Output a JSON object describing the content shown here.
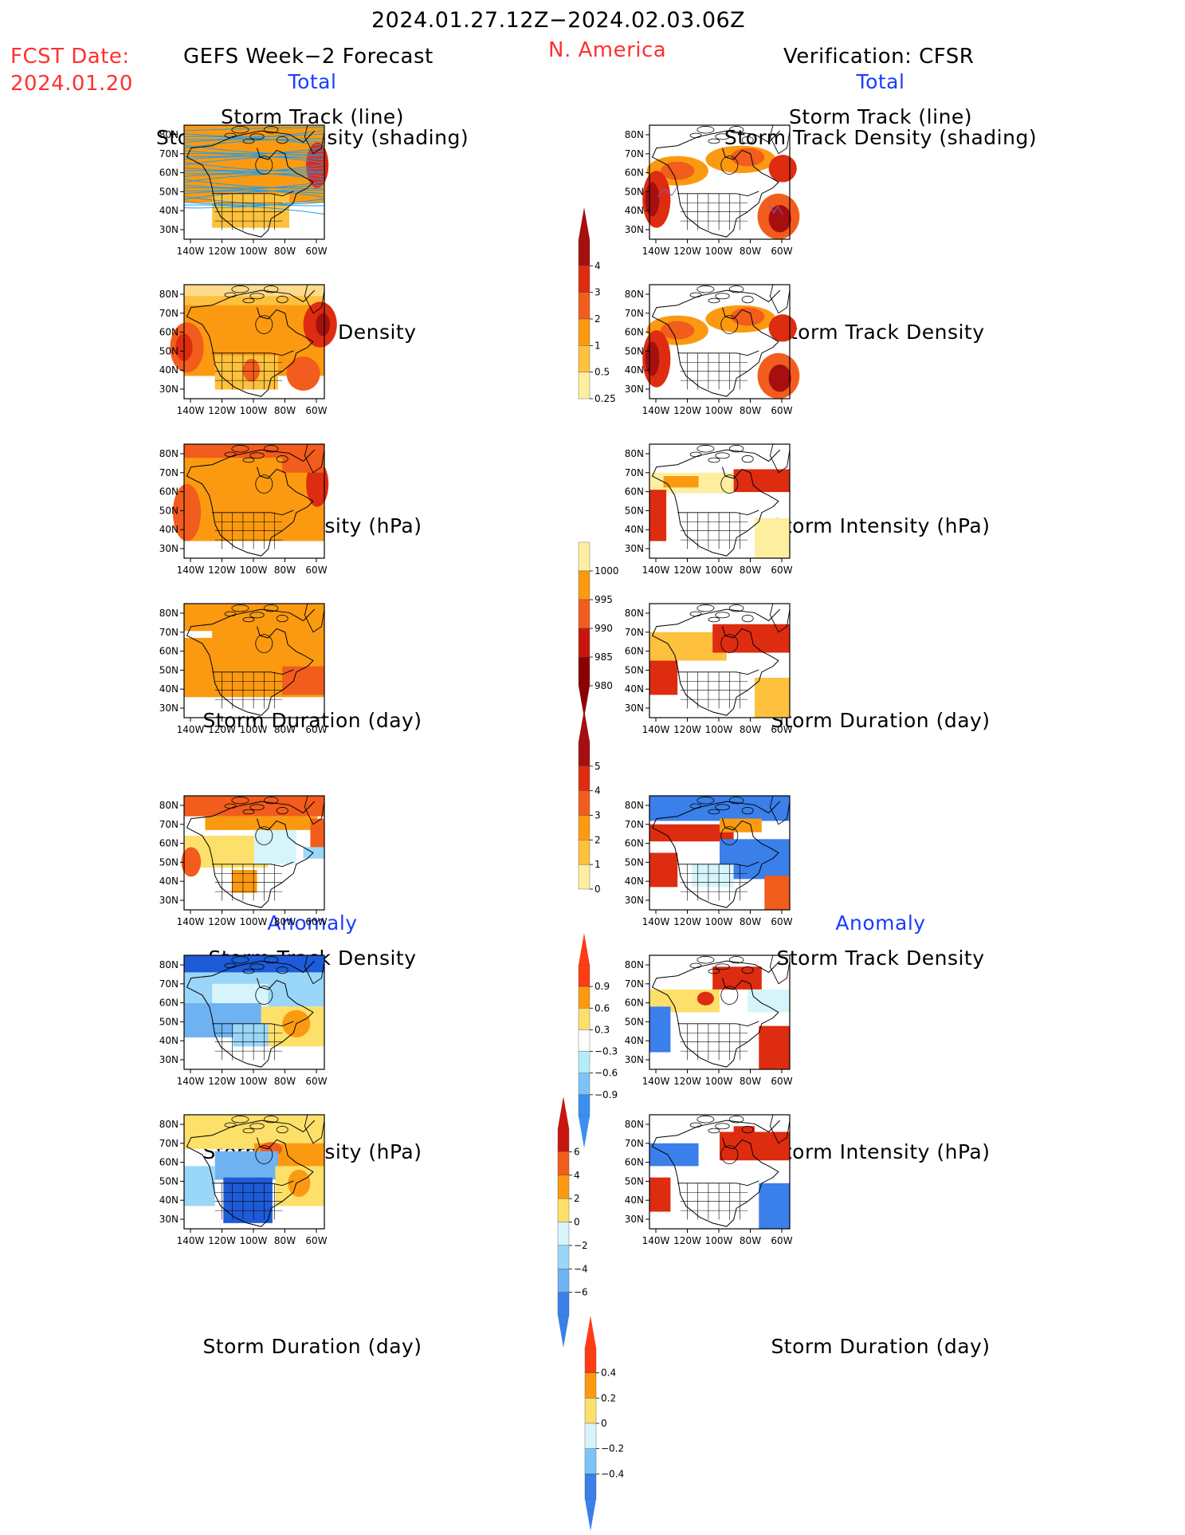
{
  "header": {
    "date_range": "2024.01.27.12Z−2024.02.03.06Z",
    "region": "N. America",
    "fcst_label": "FCST Date:",
    "fcst_date": "2024.01.20",
    "left_title": "GEFS Week−2 Forecast",
    "right_title": "Verification: CFSR"
  },
  "sections": {
    "total": "Total",
    "anomaly": "Anomaly"
  },
  "panel_titles": {
    "track_line": "Storm Track (line)",
    "track_shading": "Storm Track Density (shading)",
    "density": "Storm Track Density",
    "intensity": "Storm Intensity (hPa)",
    "duration": "Storm Duration (day)"
  },
  "axes": {
    "lat_labels": [
      "80N",
      "70N",
      "60N",
      "50N",
      "40N",
      "30N"
    ],
    "lon_labels": [
      "140W",
      "120W",
      "100W",
      "80W",
      "60W"
    ]
  },
  "colorbars": {
    "density_total": {
      "labels": [
        "4",
        "3",
        "2",
        "1",
        "0.5",
        "0.25"
      ],
      "colors": [
        "#a50f0f",
        "#dd2c10",
        "#f25c1c",
        "#fb9a10",
        "#fdc13e",
        "#feeea0"
      ]
    },
    "intensity_total": {
      "labels": [
        "1000",
        "995",
        "990",
        "985",
        "980"
      ],
      "colors": [
        "#feeea0",
        "#fb9a10",
        "#f25c1c",
        "#c8160f",
        "#8b0000"
      ]
    },
    "duration_total": {
      "labels": [
        "5",
        "4",
        "3",
        "2",
        "1",
        "0"
      ],
      "colors": [
        "#a50f0f",
        "#dd2c10",
        "#f25c1c",
        "#fb9a10",
        "#fdc13e",
        "#feeea0"
      ]
    },
    "density_anom": {
      "labels": [
        "0.9",
        "0.6",
        "0.3",
        "−0.3",
        "−0.6",
        "−0.9"
      ],
      "colors": [
        "#ff3c14",
        "#fb9a10",
        "#fde06a",
        "#ffffff",
        "#b5ecf7",
        "#7cc4f5",
        "#3a8ff0"
      ]
    },
    "intensity_anom": {
      "labels": [
        "6",
        "4",
        "2",
        "0",
        "−2",
        "−4",
        "−6"
      ],
      "colors": [
        "#c8160f",
        "#f25c1c",
        "#fb9a10",
        "#fde06a",
        "#d6f4fb",
        "#9ad6f7",
        "#6fb2f2",
        "#3a7fea"
      ]
    },
    "duration_anom": {
      "labels": [
        "0.4",
        "0.2",
        "0",
        "−0.2",
        "−0.4"
      ],
      "colors": [
        "#ff3c14",
        "#fb9a10",
        "#fde06a",
        "#d6f4fb",
        "#7cc4f5",
        "#3a7fea"
      ]
    }
  },
  "colors": {
    "header_red": "#ff3030",
    "section_blue": "#1a3cff",
    "track_line_blue": "#1e9cf0",
    "track_line_red": "#e0245e"
  }
}
